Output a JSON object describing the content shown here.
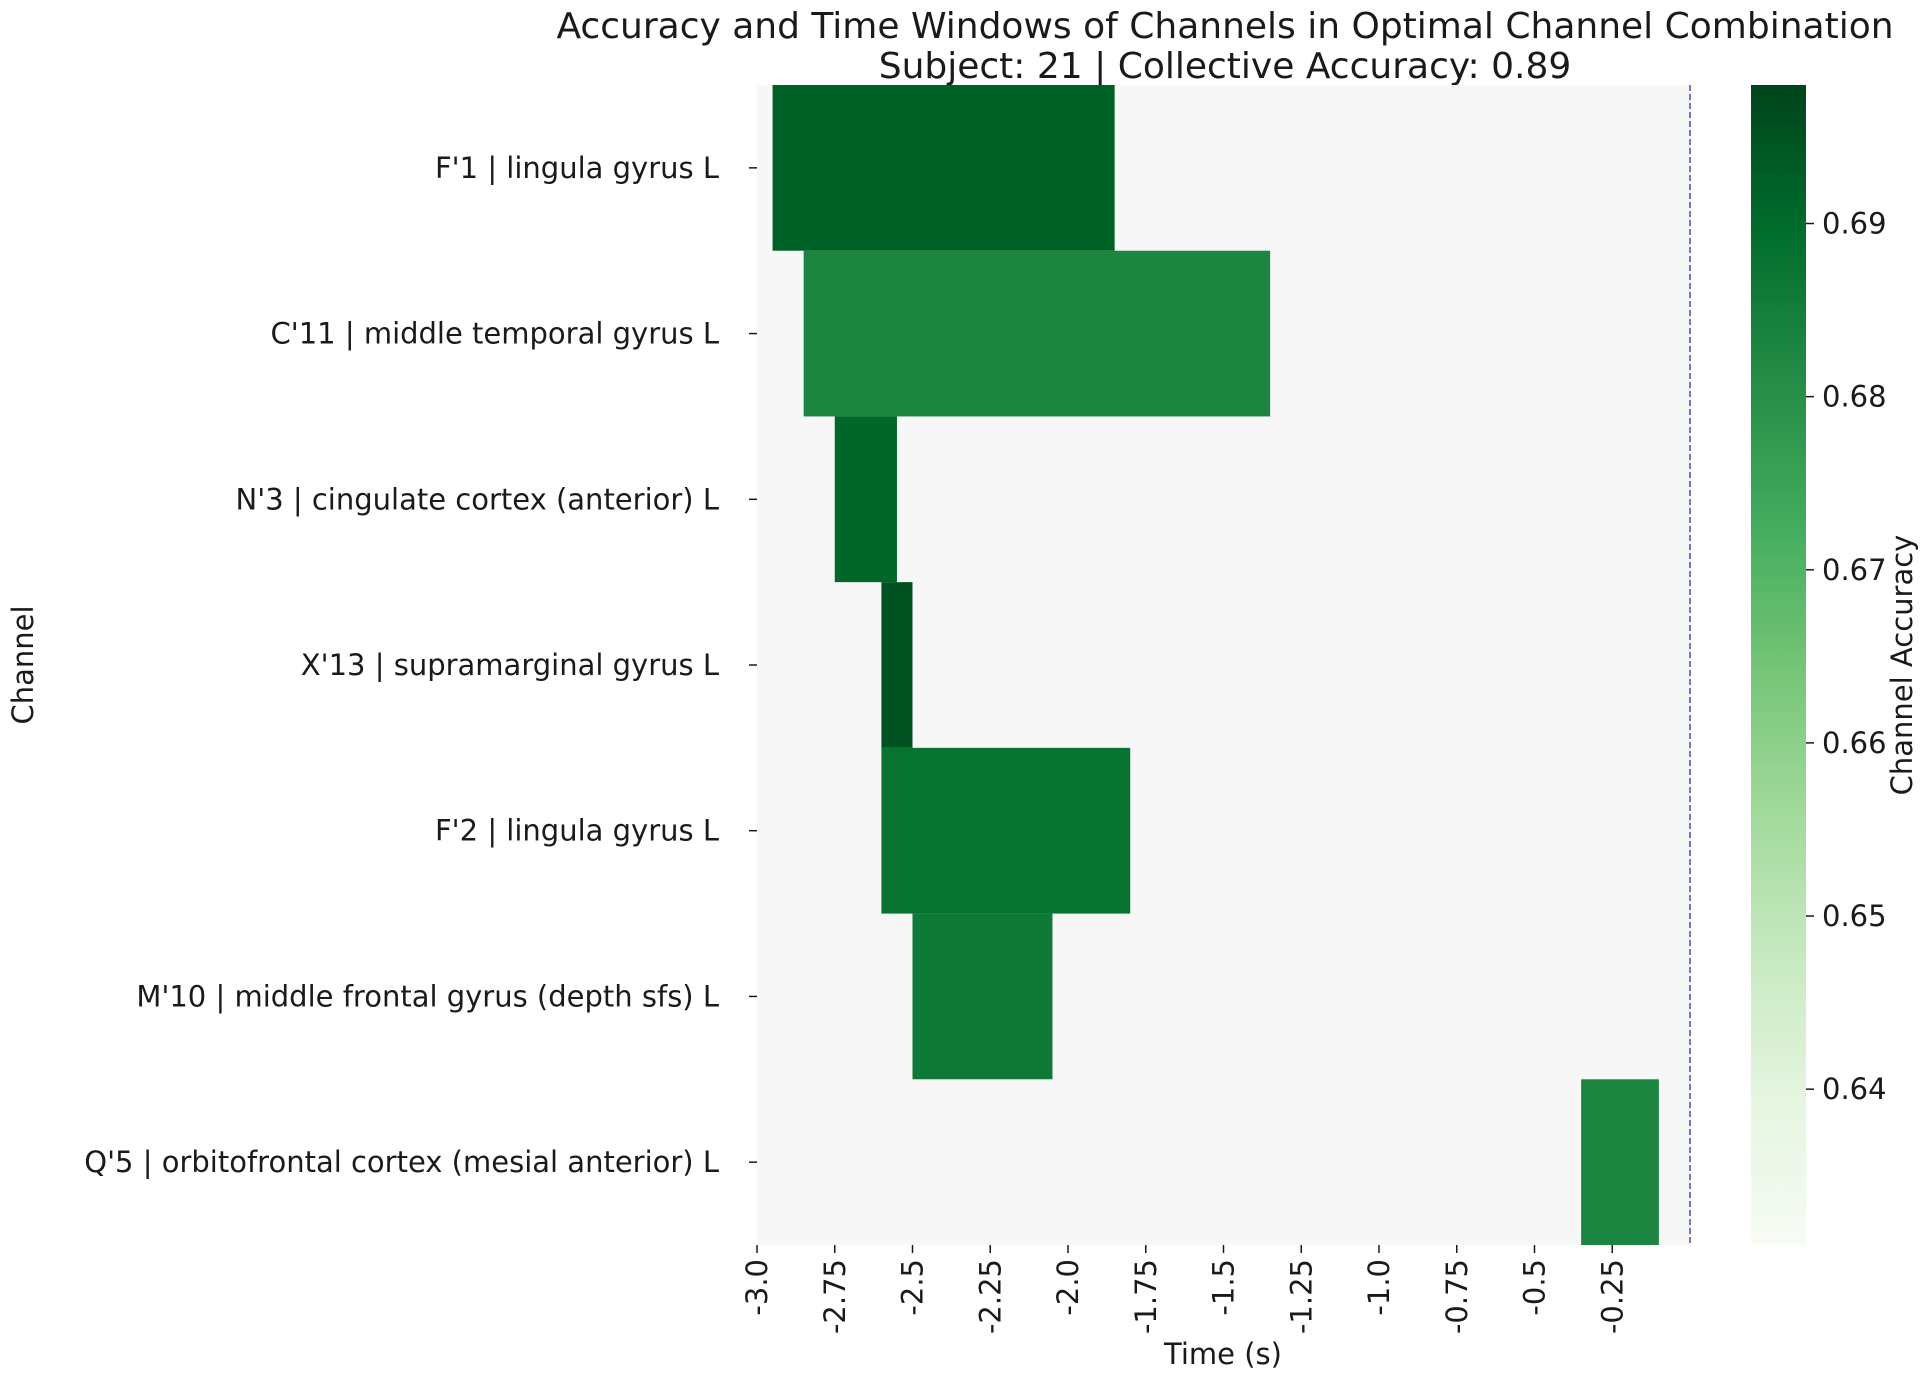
{
  "chart_data": {
    "type": "heatmap",
    "title": "Accuracy and Time Windows of Channels in Optimal Channel Combination",
    "subtitle": "Subject: 21 | Collective Accuracy: 0.89",
    "xlabel": "Time (s)",
    "ylabel": "Channel",
    "xlim": [
      -3.0,
      0.0
    ],
    "x_ticks": [
      -3.0,
      -2.75,
      -2.5,
      -2.25,
      -2.0,
      -1.75,
      -1.5,
      -1.25,
      -1.0,
      -0.75,
      -0.5,
      -0.25
    ],
    "x_tick_labels": [
      "-3.0",
      "-2.75",
      "-2.5",
      "-2.25",
      "-2.0",
      "-1.75",
      "-1.5",
      "-1.25",
      "-1.0",
      "-0.75",
      "-0.5",
      "-0.25"
    ],
    "reference_line_x": 0.0,
    "channels": [
      {
        "label": "F'1 | lingula gyrus L",
        "start": -2.95,
        "end": -1.85,
        "accuracy": 0.692
      },
      {
        "label": "C'11 | middle temporal gyrus L",
        "start": -2.85,
        "end": -1.35,
        "accuracy": 0.683
      },
      {
        "label": "N'3 | cingulate cortex (anterior) L",
        "start": -2.75,
        "end": -2.55,
        "accuracy": 0.691
      },
      {
        "label": "X'13 | supramarginal gyrus L",
        "start": -2.6,
        "end": -2.5,
        "accuracy": 0.695
      },
      {
        "label": "F'2 | lingula gyrus L",
        "start": -2.6,
        "end": -1.8,
        "accuracy": 0.688
      },
      {
        "label": "M'10 | middle frontal gyrus (depth sfs) L",
        "start": -2.5,
        "end": -2.05,
        "accuracy": 0.686
      },
      {
        "label": "Q'5 | orbitofrontal cortex (mesial anterior) L",
        "start": -0.35,
        "end": -0.1,
        "accuracy": 0.683
      }
    ],
    "colorbar": {
      "label": "Channel Accuracy",
      "min": 0.631,
      "max": 0.698,
      "ticks": [
        0.64,
        0.65,
        0.66,
        0.67,
        0.68,
        0.69
      ],
      "tick_labels": [
        "0.64",
        "0.65",
        "0.66",
        "0.67",
        "0.68",
        "0.69"
      ],
      "colormap": "Greens",
      "colors": [
        "#f7fcf5",
        "#e5f5e0",
        "#c7e9c0",
        "#a1d99b",
        "#74c476",
        "#41ab5d",
        "#238b45",
        "#006d2c",
        "#00441b"
      ]
    },
    "background_color": "#f7f7f7",
    "reference_line_color": "#3b4cc0"
  }
}
